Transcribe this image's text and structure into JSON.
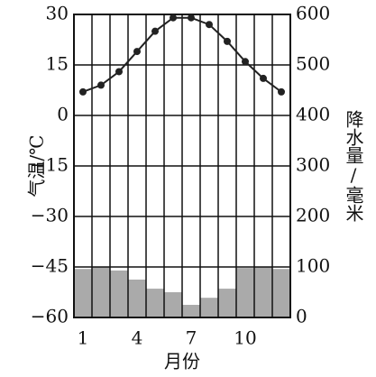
{
  "chart_data": {
    "type": "combo",
    "x_label": "月份",
    "y_label": "气温/℃",
    "y2_label": "降水量/毫米",
    "categories": [
      "1",
      null,
      null,
      "4",
      null,
      null,
      "7",
      null,
      null,
      "10",
      null,
      null
    ],
    "series": [
      {
        "type": "bar",
        "axis": "y2",
        "color": "#aaaaaa",
        "values": [
          96,
          100,
          93,
          75,
          57,
          50,
          25,
          39,
          57,
          98,
          100,
          96
        ]
      },
      {
        "type": "line",
        "axis": "y",
        "color": "#222222",
        "values": [
          7,
          9,
          13,
          19,
          25,
          29,
          29,
          27,
          22,
          16,
          11,
          7
        ]
      }
    ],
    "ylim": [
      -60,
      30
    ],
    "yticks": [
      {
        "value": -60,
        "label": "−60"
      },
      {
        "value": -45,
        "label": "−45"
      },
      {
        "value": -30,
        "label": "−30"
      },
      {
        "value": -15,
        "label": "−15"
      },
      0,
      15,
      30
    ],
    "y2lim": [
      0,
      600
    ],
    "y2ticks": [
      0,
      100,
      200,
      300,
      400,
      500,
      600
    ],
    "grid": true
  }
}
